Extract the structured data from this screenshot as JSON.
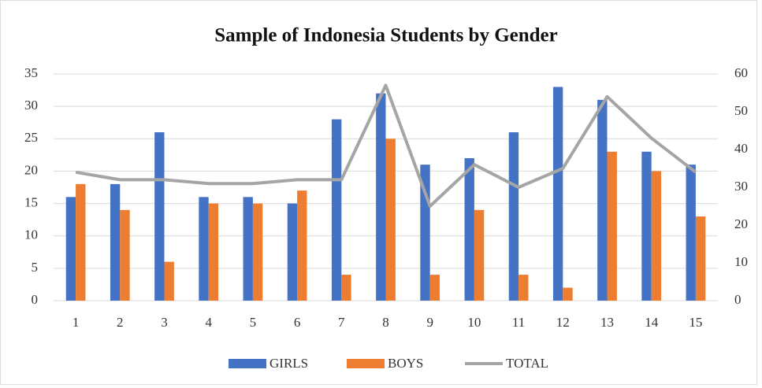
{
  "chart_data": {
    "type": "bar",
    "title": "Sample of Indonesia Students by Gender",
    "categories": [
      "1",
      "2",
      "3",
      "4",
      "5",
      "6",
      "7",
      "8",
      "9",
      "10",
      "11",
      "12",
      "13",
      "14",
      "15"
    ],
    "series": [
      {
        "name": "GIRLS",
        "color": "#4472c4",
        "type": "bar",
        "values": [
          16,
          18,
          26,
          16,
          16,
          15,
          28,
          32,
          21,
          22,
          26,
          33,
          31,
          23,
          21
        ]
      },
      {
        "name": "BOYS",
        "color": "#ed7d31",
        "type": "bar",
        "values": [
          18,
          14,
          6,
          15,
          15,
          17,
          4,
          25,
          4,
          14,
          4,
          2,
          23,
          20,
          13
        ]
      },
      {
        "name": "TOTAL",
        "color": "#a5a5a5",
        "type": "line",
        "axis": "y2",
        "values": [
          34,
          32,
          32,
          31,
          31,
          32,
          32,
          57,
          25,
          36,
          30,
          35,
          54,
          43,
          34
        ]
      }
    ],
    "ylim": [
      0,
      35
    ],
    "yticks": [
      0,
      5,
      10,
      15,
      20,
      25,
      30,
      35
    ],
    "y2lim": [
      0,
      60
    ],
    "y2ticks": [
      0,
      10,
      20,
      30,
      40,
      50,
      60
    ],
    "grid": true,
    "legend": "bottom"
  }
}
